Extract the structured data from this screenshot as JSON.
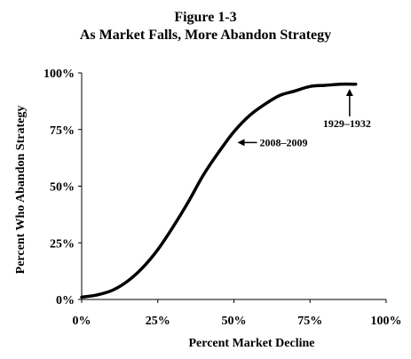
{
  "figure": {
    "number": "Figure 1-3",
    "title": "As Market Falls, More Abandon Strategy"
  },
  "chart_data": {
    "type": "line",
    "title": "As Market Falls, More Abandon Strategy",
    "xlabel": "Percent Market Decline",
    "ylabel": "Percent Who Abandon Strategy",
    "xlim": [
      0,
      100
    ],
    "ylim": [
      0,
      100
    ],
    "xticks": [
      {
        "value": 0,
        "label": "0%"
      },
      {
        "value": 25,
        "label": "25%"
      },
      {
        "value": 50,
        "label": "50%"
      },
      {
        "value": 75,
        "label": "75%"
      },
      {
        "value": 100,
        "label": "100%"
      }
    ],
    "yticks": [
      {
        "value": 0,
        "label": "0%"
      },
      {
        "value": 25,
        "label": "25%"
      },
      {
        "value": 50,
        "label": "50%"
      },
      {
        "value": 75,
        "label": "75%"
      },
      {
        "value": 100,
        "label": "100%"
      }
    ],
    "grid": false,
    "legend": "none",
    "line_color": "#000000",
    "series": [
      {
        "x": [
          0,
          5,
          10,
          15,
          20,
          25,
          30,
          35,
          40,
          45,
          50,
          55,
          60,
          65,
          70,
          75,
          80,
          85,
          90
        ],
        "values": [
          1,
          2,
          4,
          8,
          14,
          22,
          32,
          43,
          55,
          65,
          74,
          81,
          86,
          90,
          92,
          94,
          94.5,
          95,
          95
        ]
      }
    ],
    "annotations": [
      {
        "label": "2008–2009",
        "x": 50,
        "y": 72,
        "arrow": "left"
      },
      {
        "label": "1929–1932",
        "x": 88,
        "y": 94.5,
        "arrow": "down"
      }
    ]
  }
}
